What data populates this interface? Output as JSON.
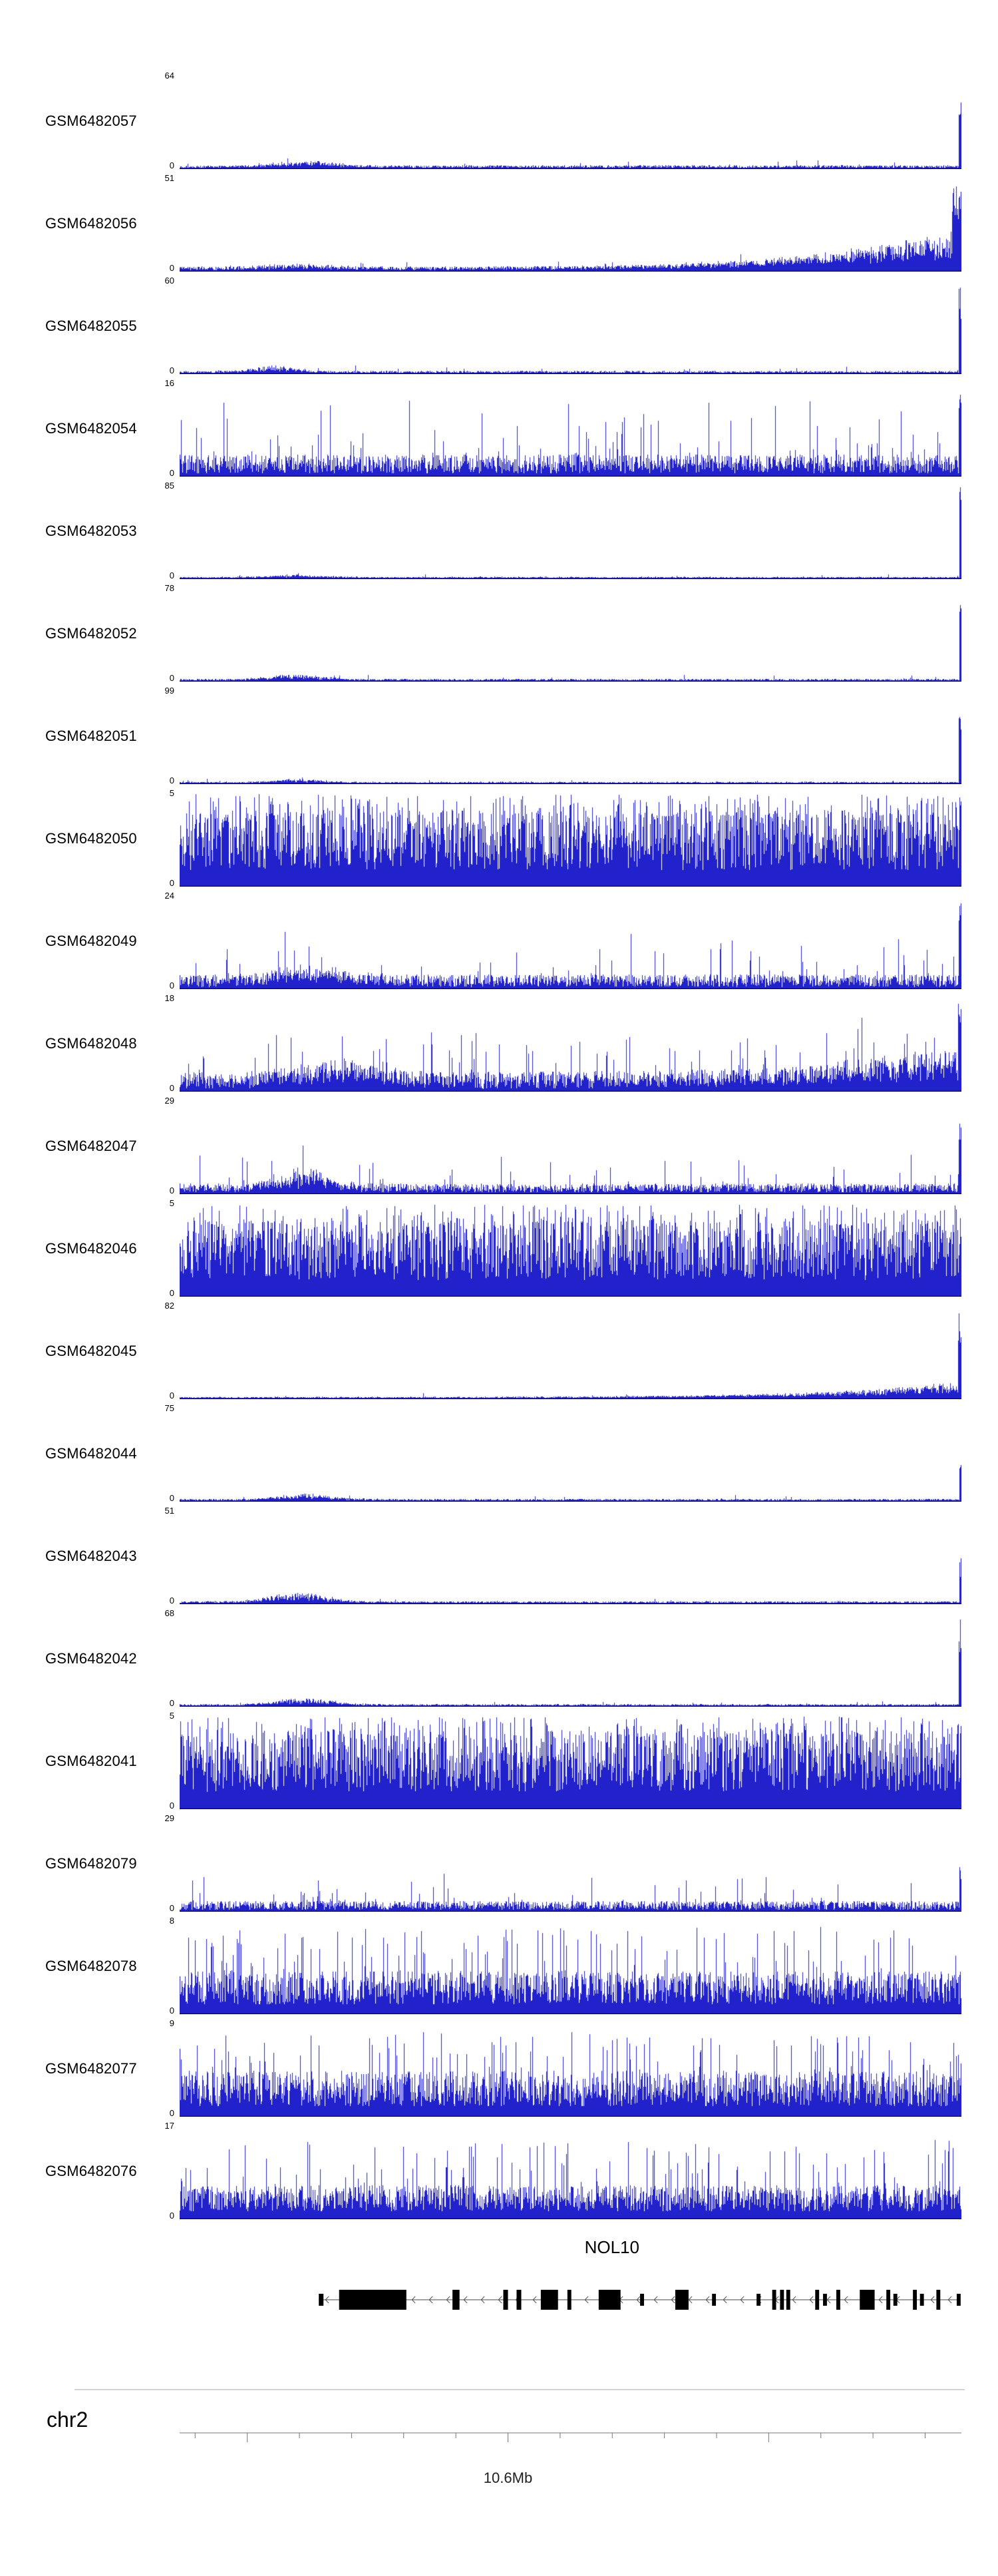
{
  "colors": {
    "signal": "#2222cc",
    "baseline": "#000000",
    "gene": "#000000",
    "intron_line": "#444444",
    "arrow": "#555555",
    "range_line": "#aaaaaa",
    "ruler_line": "#777777"
  },
  "chart_data": {
    "type": "area",
    "subtype": "genome-coverage-tracks",
    "description": "Stacked read-coverage tracks for 21 GEO samples over the NOL10 locus on chromosome 2 (around 10.6Mb). Each track shows per-base coverage in blue with its own y-axis maximum; 0 is the baseline.",
    "ymin_label": "0",
    "tracks": [
      {
        "name": "GSM6482057",
        "ymax": 64,
        "style": "low",
        "base": 0.02,
        "spike_prob": 0.02,
        "spike_amp": 0.07,
        "bump": [
          0.16,
          0.05,
          0.05
        ],
        "right": [
          0.004,
          1.0
        ],
        "seed": 101
      },
      {
        "name": "GSM6482056",
        "ymax": 51,
        "style": "low",
        "base": 0.028,
        "spike_prob": 0.03,
        "spike_amp": 0.07,
        "bump": [
          0.15,
          0.06,
          0.03
        ],
        "ramp": 0.3,
        "right": [
          0.012,
          1.0
        ],
        "seed": 102
      },
      {
        "name": "GSM6482055",
        "ymax": 60,
        "style": "low",
        "base": 0.016,
        "spike_prob": 0.02,
        "spike_amp": 0.06,
        "bump": [
          0.12,
          0.04,
          0.05
        ],
        "right": [
          0.004,
          1.0
        ],
        "seed": 103
      },
      {
        "name": "GSM6482054",
        "ymax": 16,
        "style": "mid",
        "mean": 0.13,
        "spike_prob": 0.1,
        "spike_amp": 0.62,
        "right": [
          0.004,
          1.0
        ],
        "seed": 104
      },
      {
        "name": "GSM6482053",
        "ymax": 85,
        "style": "low",
        "base": 0.011,
        "spike_prob": 0.015,
        "spike_amp": 0.04,
        "bump": [
          0.15,
          0.05,
          0.02
        ],
        "right": [
          0.003,
          1.0
        ],
        "seed": 105
      },
      {
        "name": "GSM6482052",
        "ymax": 78,
        "style": "low",
        "base": 0.013,
        "spike_prob": 0.02,
        "spike_amp": 0.05,
        "bump": [
          0.15,
          0.05,
          0.045
        ],
        "right": [
          0.003,
          0.92
        ],
        "seed": 106
      },
      {
        "name": "GSM6482051",
        "ymax": 99,
        "style": "low",
        "base": 0.011,
        "spike_prob": 0.015,
        "spike_amp": 0.04,
        "bump": [
          0.15,
          0.04,
          0.03
        ],
        "right": [
          0.004,
          1.0
        ],
        "seed": 107
      },
      {
        "name": "GSM6482050",
        "ymax": 5,
        "style": "dense",
        "mean": 0.5,
        "tall_prob": 0.22,
        "tall_amp": 1.0,
        "seed": 108
      },
      {
        "name": "GSM6482049",
        "ymax": 24,
        "style": "mid",
        "mean": 0.085,
        "spike_prob": 0.05,
        "spike_amp": 0.45,
        "bump": [
          0.17,
          0.06,
          0.1
        ],
        "right": [
          0.004,
          1.0
        ],
        "seed": 109
      },
      {
        "name": "GSM6482048",
        "ymax": 18,
        "style": "mid",
        "mean": 0.115,
        "spike_prob": 0.07,
        "spike_amp": 0.5,
        "bump": [
          0.2,
          0.075,
          0.12
        ],
        "ramp": 0.22,
        "right": [
          0.005,
          0.95
        ],
        "seed": 110
      },
      {
        "name": "GSM6482047",
        "ymax": 29,
        "style": "mid",
        "mean": 0.06,
        "spike_prob": 0.045,
        "spike_amp": 0.38,
        "bump": [
          0.16,
          0.045,
          0.15
        ],
        "right": [
          0.004,
          0.9
        ],
        "seed": 111
      },
      {
        "name": "GSM6482046",
        "ymax": 5,
        "style": "dense",
        "mean": 0.5,
        "tall_prob": 0.22,
        "tall_amp": 1.0,
        "seed": 112
      },
      {
        "name": "GSM6482045",
        "ymax": 82,
        "style": "low",
        "base": 0.011,
        "spike_prob": 0.015,
        "spike_amp": 0.04,
        "ramp": 0.12,
        "right": [
          0.005,
          0.96
        ],
        "seed": 113
      },
      {
        "name": "GSM6482044",
        "ymax": 75,
        "style": "low",
        "base": 0.013,
        "spike_prob": 0.02,
        "spike_amp": 0.05,
        "bump": [
          0.16,
          0.05,
          0.05
        ],
        "right": [
          0.003,
          0.55
        ],
        "seed": 114
      },
      {
        "name": "GSM6482043",
        "ymax": 51,
        "style": "low",
        "base": 0.015,
        "spike_prob": 0.02,
        "spike_amp": 0.05,
        "bump": [
          0.15,
          0.05,
          0.08
        ],
        "right": [
          0.003,
          0.5
        ],
        "seed": 115
      },
      {
        "name": "GSM6482042",
        "ymax": 68,
        "style": "low",
        "base": 0.012,
        "spike_prob": 0.02,
        "spike_amp": 0.04,
        "bump": [
          0.16,
          0.05,
          0.06
        ],
        "right": [
          0.004,
          1.0
        ],
        "seed": 116
      },
      {
        "name": "GSM6482041",
        "ymax": 5,
        "style": "dense",
        "mean": 0.52,
        "tall_prob": 0.22,
        "tall_amp": 1.0,
        "seed": 117
      },
      {
        "name": "GSM6482079",
        "ymax": 29,
        "style": "mid",
        "mean": 0.06,
        "spike_prob": 0.05,
        "spike_amp": 0.3,
        "right": [
          0.003,
          0.6
        ],
        "seed": 118
      },
      {
        "name": "GSM6482078",
        "ymax": 8,
        "style": "dense",
        "mean": 0.28,
        "tall_prob": 0.12,
        "tall_amp": 0.9,
        "seed": 119
      },
      {
        "name": "GSM6482077",
        "ymax": 9,
        "style": "dense",
        "mean": 0.3,
        "tall_prob": 0.12,
        "tall_amp": 0.85,
        "seed": 120
      },
      {
        "name": "GSM6482076",
        "ymax": 17,
        "style": "dense",
        "mean": 0.22,
        "tall_prob": 0.1,
        "tall_amp": 0.8,
        "seed": 121
      }
    ],
    "gene_track": {
      "gene_label": "NOL10",
      "strand": "minus",
      "span": [
        0.178,
        1.0
      ],
      "label_pos": 0.553,
      "exons": [
        {
          "p": 0.178,
          "w": 0.006,
          "h": 0.6
        },
        {
          "p": 0.204,
          "w": 0.086,
          "h": 1.0
        },
        {
          "p": 0.349,
          "w": 0.009,
          "h": 1.0
        },
        {
          "p": 0.414,
          "w": 0.006,
          "h": 1.0
        },
        {
          "p": 0.431,
          "w": 0.006,
          "h": 1.0
        },
        {
          "p": 0.462,
          "w": 0.022,
          "h": 1.0
        },
        {
          "p": 0.496,
          "w": 0.005,
          "h": 1.0
        },
        {
          "p": 0.536,
          "w": 0.028,
          "h": 1.0
        },
        {
          "p": 0.589,
          "w": 0.005,
          "h": 0.6
        },
        {
          "p": 0.634,
          "w": 0.017,
          "h": 1.0
        },
        {
          "p": 0.681,
          "w": 0.005,
          "h": 0.6
        },
        {
          "p": 0.738,
          "w": 0.005,
          "h": 0.6
        },
        {
          "p": 0.758,
          "w": 0.005,
          "h": 1.0
        },
        {
          "p": 0.768,
          "w": 0.005,
          "h": 1.0
        },
        {
          "p": 0.776,
          "w": 0.005,
          "h": 1.0
        },
        {
          "p": 0.813,
          "w": 0.005,
          "h": 1.0
        },
        {
          "p": 0.823,
          "w": 0.005,
          "h": 0.6
        },
        {
          "p": 0.84,
          "w": 0.005,
          "h": 1.0
        },
        {
          "p": 0.87,
          "w": 0.019,
          "h": 1.0
        },
        {
          "p": 0.904,
          "w": 0.005,
          "h": 1.0
        },
        {
          "p": 0.913,
          "w": 0.005,
          "h": 0.6
        },
        {
          "p": 0.938,
          "w": 0.005,
          "h": 1.0
        },
        {
          "p": 0.947,
          "w": 0.005,
          "h": 0.6
        },
        {
          "p": 0.968,
          "w": 0.005,
          "h": 1.0
        },
        {
          "p": 0.994,
          "w": 0.005,
          "h": 0.6
        }
      ]
    },
    "axis": {
      "chromosome": "chr2",
      "label": "10.6Mb",
      "label_pos": 0.42,
      "tick_step": 0.0667,
      "tick_range": [
        -6,
        8
      ]
    }
  }
}
